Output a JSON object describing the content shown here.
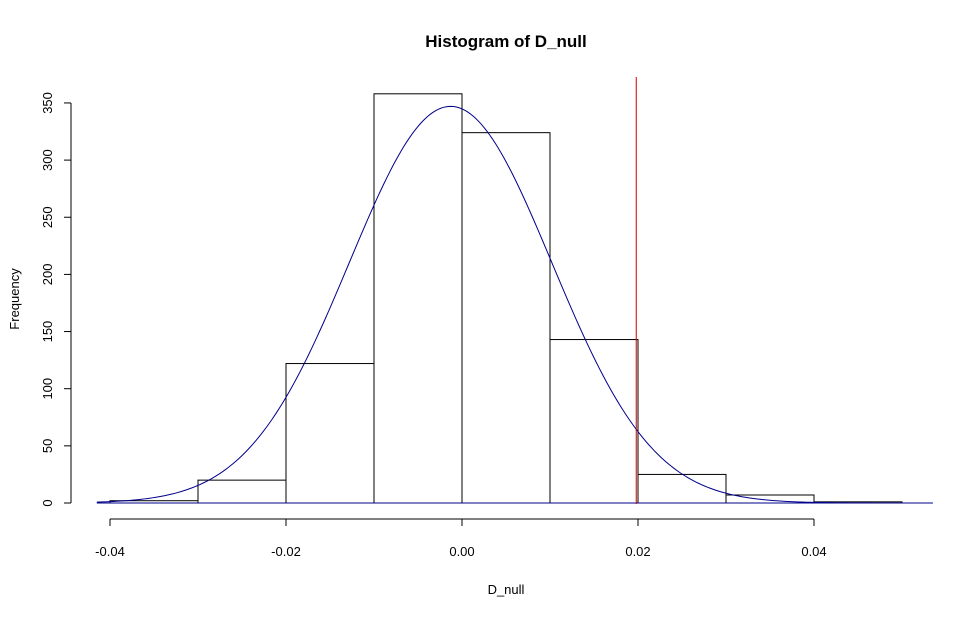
{
  "chart_data": {
    "type": "bar",
    "title": "Histogram of D_null",
    "xlabel": "D_null",
    "ylabel": "Frequency",
    "xlim": [
      -0.04,
      0.05
    ],
    "ylim": [
      0,
      350
    ],
    "bins": [
      {
        "x0": -0.04,
        "x1": -0.03,
        "count": 2
      },
      {
        "x0": -0.03,
        "x1": -0.02,
        "count": 20
      },
      {
        "x0": -0.02,
        "x1": -0.01,
        "count": 122
      },
      {
        "x0": -0.01,
        "x1": 0.0,
        "count": 358
      },
      {
        "x0": 0.0,
        "x1": 0.01,
        "count": 324
      },
      {
        "x0": 0.01,
        "x1": 0.02,
        "count": 143
      },
      {
        "x0": 0.02,
        "x1": 0.03,
        "count": 25
      },
      {
        "x0": 0.03,
        "x1": 0.04,
        "count": 7
      },
      {
        "x0": 0.04,
        "x1": 0.05,
        "count": 1
      }
    ],
    "x_ticks": [
      -0.04,
      -0.02,
      0.0,
      0.02,
      0.04
    ],
    "x_tick_labels": [
      "-0.04",
      "-0.02",
      "0.00",
      "0.02",
      "0.04"
    ],
    "y_ticks": [
      0,
      50,
      100,
      150,
      200,
      250,
      300,
      350
    ],
    "y_tick_labels": [
      "0",
      "50",
      "100",
      "150",
      "200",
      "250",
      "300",
      "350"
    ],
    "density_curve": {
      "color": "#00008b",
      "mean": -0.0013,
      "sd": 0.0115,
      "peak": 347,
      "x_range": [
        -0.0415,
        0.0535
      ]
    },
    "reference_line": {
      "x": 0.0198,
      "color": "#cc0000"
    },
    "grid": false
  }
}
